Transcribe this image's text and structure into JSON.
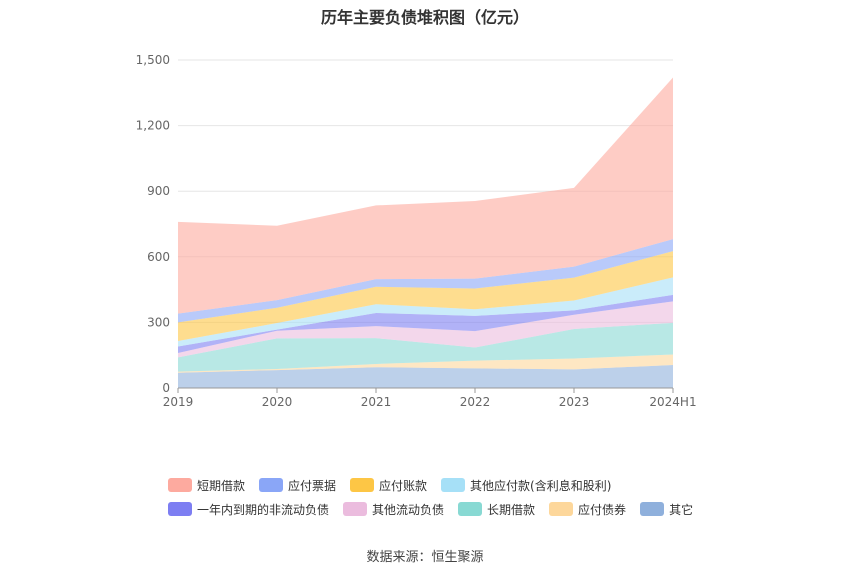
{
  "chart_data": {
    "type": "area",
    "stacked": true,
    "title": "历年主要负债堆积图（亿元）",
    "categories": [
      "2019",
      "2020",
      "2021",
      "2022",
      "2023",
      "2024H1"
    ],
    "y_ticks": [
      "0",
      "300",
      "600",
      "900",
      "1,200",
      "1,500"
    ],
    "ylim": [
      0,
      1500
    ],
    "grid": true,
    "legend_position": "bottom",
    "series": [
      {
        "name": "其它",
        "color": "#8fb0dc",
        "values": [
          70,
          82,
          95,
          90,
          85,
          105
        ]
      },
      {
        "name": "应付债券",
        "color": "#fdd79b",
        "values": [
          5,
          5,
          15,
          35,
          50,
          48
        ]
      },
      {
        "name": "长期借款",
        "color": "#88d9d3",
        "values": [
          65,
          140,
          118,
          60,
          135,
          145
        ]
      },
      {
        "name": "其他流动负债",
        "color": "#ebbcde",
        "values": [
          20,
          35,
          55,
          75,
          65,
          98
        ]
      },
      {
        "name": "一年内到期的非流动负债",
        "color": "#7d7ef2",
        "values": [
          30,
          5,
          60,
          70,
          20,
          30
        ]
      },
      {
        "name": "其他应付款(含利息和股利)",
        "color": "#a6e0f7",
        "values": [
          25,
          30,
          40,
          30,
          45,
          80
        ]
      },
      {
        "name": "应付账款",
        "color": "#fdc645",
        "values": [
          85,
          70,
          80,
          95,
          105,
          120
        ]
      },
      {
        "name": "应付票据",
        "color": "#8aa6f7",
        "values": [
          40,
          35,
          35,
          45,
          50,
          55
        ]
      },
      {
        "name": "短期借款",
        "color": "#fdaa9f",
        "values": [
          420,
          340,
          337,
          355,
          360,
          739
        ]
      }
    ]
  },
  "legend_rows": [
    [
      "短期借款",
      "应付票据",
      "应付账款",
      "其他应付款(含利息和股利)"
    ],
    [
      "一年内到期的非流动负债",
      "其他流动负债",
      "长期借款",
      "应付债券",
      "其它"
    ]
  ],
  "source_text": "数据来源：恒生聚源"
}
